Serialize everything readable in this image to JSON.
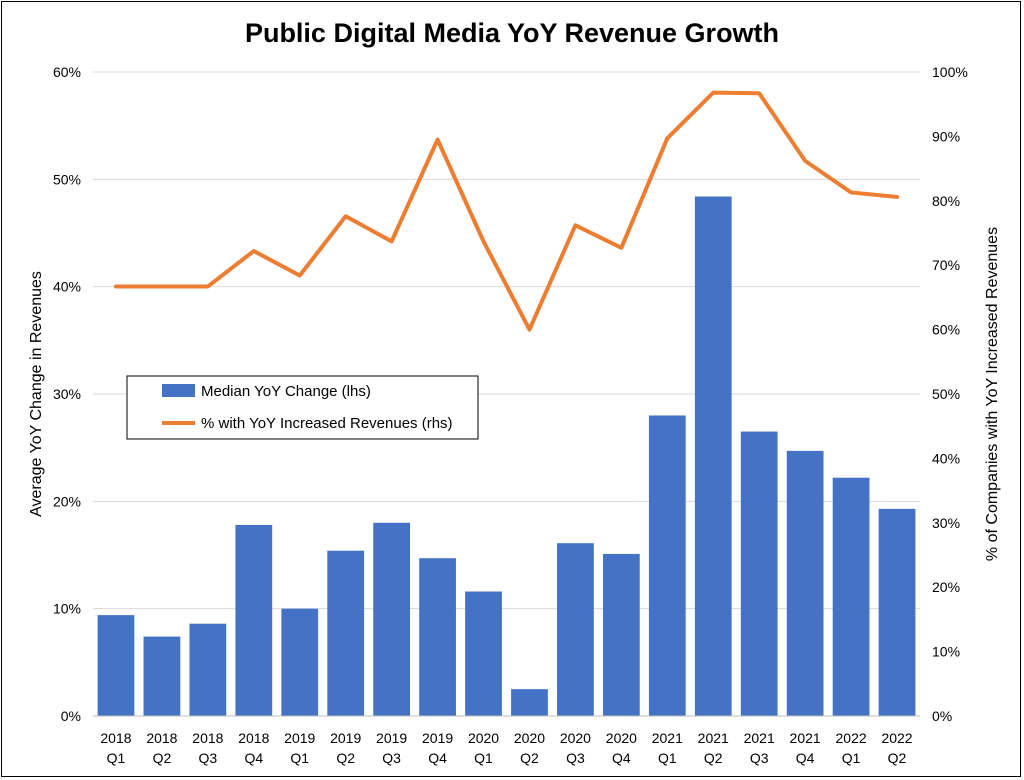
{
  "chart_data": {
    "type": "bar",
    "title": "Public Digital Media YoY Revenue Growth",
    "categories": [
      [
        "2018",
        "Q1"
      ],
      [
        "2018",
        "Q2"
      ],
      [
        "2018",
        "Q3"
      ],
      [
        "2018",
        "Q4"
      ],
      [
        "2019",
        "Q1"
      ],
      [
        "2019",
        "Q2"
      ],
      [
        "2019",
        "Q3"
      ],
      [
        "2019",
        "Q4"
      ],
      [
        "2020",
        "Q1"
      ],
      [
        "2020",
        "Q2"
      ],
      [
        "2020",
        "Q3"
      ],
      [
        "2020",
        "Q4"
      ],
      [
        "2021",
        "Q1"
      ],
      [
        "2021",
        "Q2"
      ],
      [
        "2021",
        "Q3"
      ],
      [
        "2021",
        "Q4"
      ],
      [
        "2022",
        "Q1"
      ],
      [
        "2022",
        "Q2"
      ]
    ],
    "ylabel_left": "Average YoY Change in Revenues",
    "ylabel_right": "% of Companies with YoY Increased Revenues",
    "yticks_left": [
      "0%",
      "10%",
      "20%",
      "30%",
      "40%",
      "50%",
      "60%"
    ],
    "yticks_right": [
      "0%",
      "10%",
      "20%",
      "30%",
      "40%",
      "50%",
      "60%",
      "70%",
      "80%",
      "90%",
      "100%"
    ],
    "ylim_left": [
      0,
      60
    ],
    "ylim_right": [
      0,
      100
    ],
    "grid": true,
    "legend_position": "center-left",
    "series": [
      {
        "name": "Median YoY Change (lhs)",
        "type": "bar",
        "axis": "left",
        "color": "#4472C4",
        "values": [
          9.4,
          7.4,
          8.6,
          17.8,
          10.0,
          15.4,
          18.0,
          14.7,
          11.6,
          2.5,
          16.1,
          15.1,
          28.0,
          48.4,
          26.5,
          24.7,
          22.2,
          19.3
        ]
      },
      {
        "name": "% with YoY Increased Revenues (rhs)",
        "type": "line",
        "axis": "right",
        "color": "#ED7D31",
        "values": [
          66.7,
          66.7,
          66.7,
          72.2,
          68.4,
          77.6,
          73.7,
          89.5,
          73.7,
          60.0,
          76.2,
          72.7,
          89.7,
          96.8,
          96.7,
          86.2,
          81.3,
          80.6
        ]
      }
    ]
  }
}
